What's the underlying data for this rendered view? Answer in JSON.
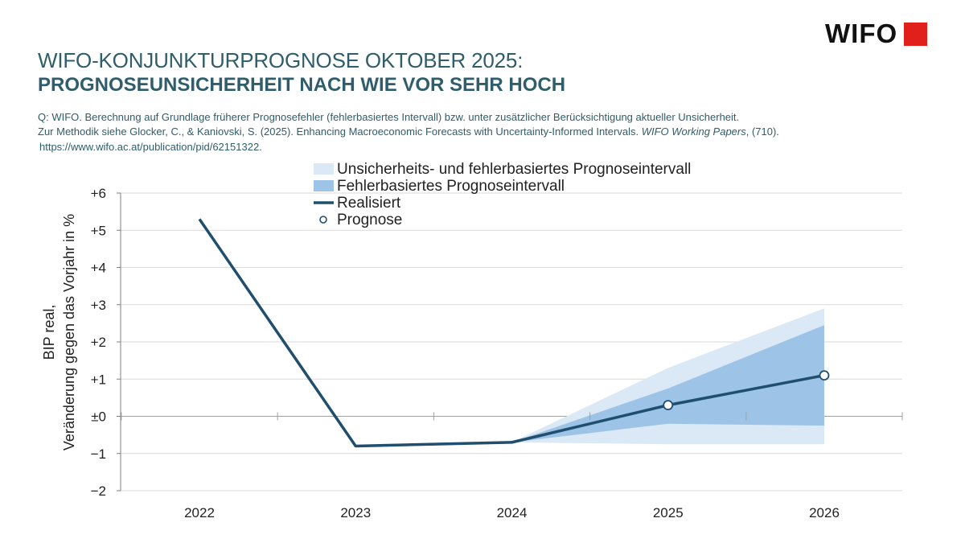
{
  "header": {
    "logo_text": "WIFO",
    "title_line1": "WIFO-KONJUNKTURPROGNOSE OKTOBER 2025:",
    "title_line2": "PROGNOSEUNSICHERHEIT NACH WIE VOR SEHR HOCH"
  },
  "source": {
    "line1": "Q: WIFO. Berechnung auf Grundlage früherer Prognosefehler (fehlerbasiertes Intervall) bzw. unter zusätzlicher Berücksichtigung aktueller Unsicherheit.",
    "line2_prefix": "Zur Methodik siehe Glocker, C., & Kaniovski, S. (2025). Enhancing Macroeconomic Forecasts with Uncertainty-Informed Intervals. ",
    "line2_italic": "WIFO Working Papers",
    "line2_suffix": ", (710).",
    "line3": "https://www.wifo.ac.at/publication/pid/62151322."
  },
  "colors": {
    "line": "#1f4e6e",
    "band_error": "#9dc3e6",
    "band_uncertainty": "#dbe8f5",
    "grid": "#d9d9d9",
    "logo_square": "#e1201b"
  },
  "chart_data": {
    "type": "line",
    "title": "",
    "xlabel": "",
    "ylabel_line1": "BIP real,",
    "ylabel_line2": "Veränderung gegen das Vorjahr in %",
    "categories": [
      "2022",
      "2023",
      "2024",
      "2025",
      "2026"
    ],
    "ylim": [
      -2,
      6
    ],
    "yticks": [
      6,
      5,
      4,
      3,
      2,
      1,
      0,
      -1,
      -2
    ],
    "ytick_labels": [
      "+6",
      "+5",
      "+4",
      "+3",
      "+2",
      "+1",
      "±0",
      "−1",
      "−2"
    ],
    "grid": true,
    "legend_position": "top-center",
    "legend": [
      {
        "key": "uncertainty",
        "label": "Unsicherheits- und fehlerbasiertes Prognoseintervall"
      },
      {
        "key": "error",
        "label": "Fehlerbasiertes Prognoseintervall"
      },
      {
        "key": "realised",
        "label": "Realisiert"
      },
      {
        "key": "forecast",
        "label": "Prognose"
      }
    ],
    "series": [
      {
        "name": "Realisiert",
        "x": [
          2022,
          2023,
          2024,
          2025,
          2026
        ],
        "values": [
          5.3,
          -0.8,
          -0.7,
          0.3,
          1.1
        ]
      },
      {
        "name": "Prognose",
        "x": [
          2025,
          2026
        ],
        "values": [
          0.3,
          1.1
        ]
      }
    ],
    "bands": [
      {
        "name": "Unsicherheits- und fehlerbasiertes Prognoseintervall",
        "x": [
          2024,
          2025,
          2026
        ],
        "lower": [
          -0.7,
          -0.75,
          -0.75
        ],
        "upper": [
          -0.7,
          1.3,
          2.9
        ]
      },
      {
        "name": "Fehlerbasiertes Prognoseintervall",
        "x": [
          2024,
          2025,
          2026
        ],
        "lower": [
          -0.7,
          -0.2,
          -0.25
        ],
        "upper": [
          -0.7,
          0.75,
          2.45
        ]
      }
    ]
  }
}
